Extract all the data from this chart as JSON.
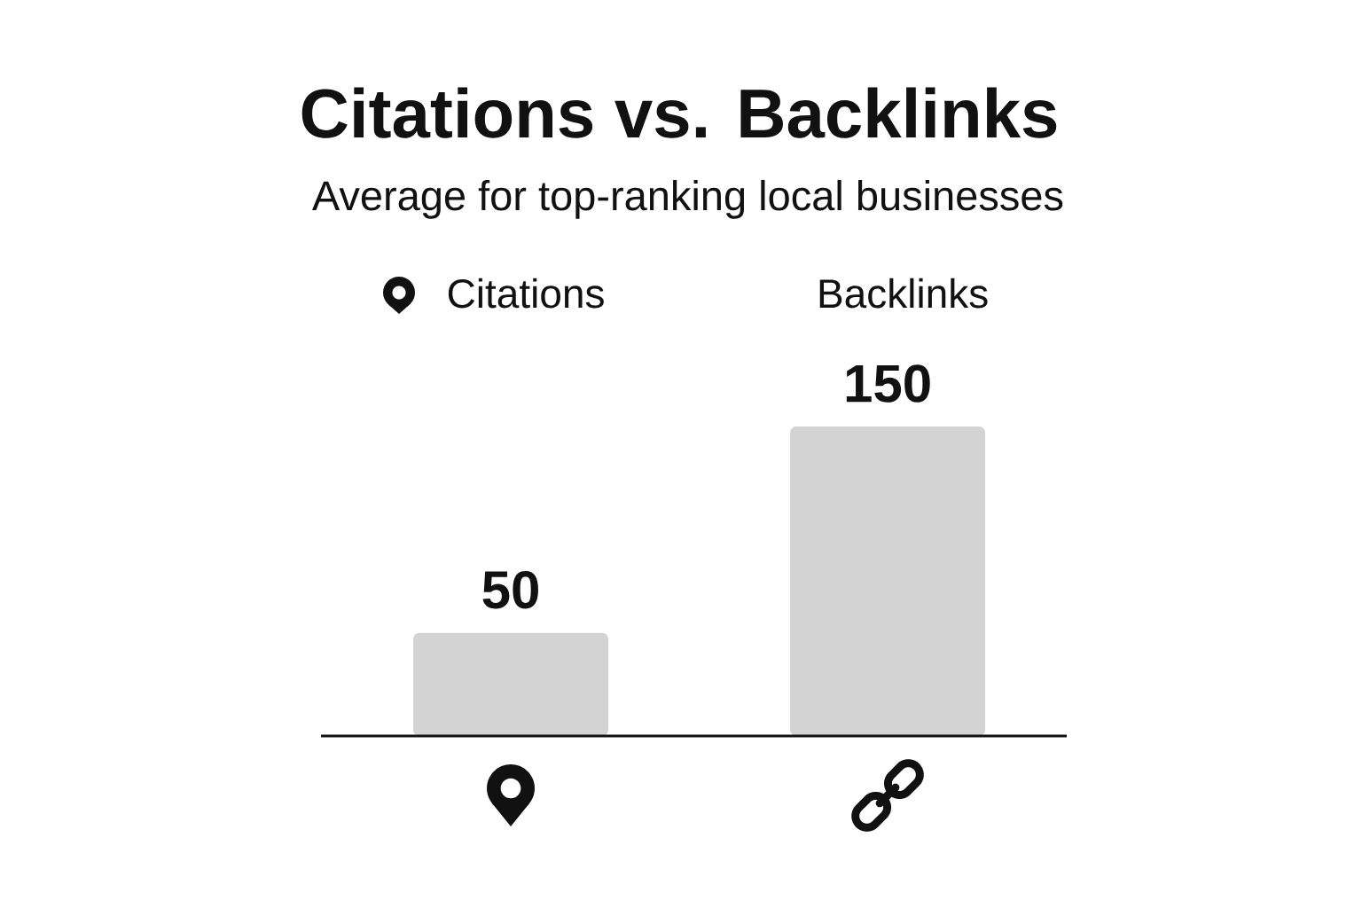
{
  "chart_data": {
    "type": "bar",
    "title": "Citations vs. Backlinks",
    "subtitle": "Average for top-ranking local businesses",
    "categories": [
      "Citations",
      "Backlinks"
    ],
    "values": [
      50,
      150
    ],
    "color": "#d3d3d3",
    "data_labels": true,
    "tick_labels": "x"
  }
}
